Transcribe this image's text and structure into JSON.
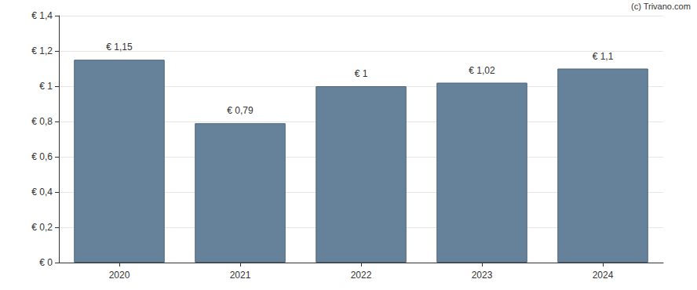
{
  "chart_data": {
    "type": "bar",
    "annotation": "(c) Trivano.com",
    "categories": [
      "2020",
      "2021",
      "2022",
      "2023",
      "2024"
    ],
    "values": [
      1.15,
      0.79,
      1,
      1.02,
      1.1
    ],
    "value_labels": [
      "€ 1,15",
      "€ 0,79",
      "€ 1",
      "€ 1,02",
      "€ 1,1"
    ],
    "data_labels": true,
    "color": "#66829a",
    "ylim": [
      0,
      1.4
    ],
    "yticks": [
      {
        "value": 0,
        "label": "€ 0"
      },
      {
        "value": 0.2,
        "label": "€ 0,2"
      },
      {
        "value": 0.4,
        "label": "€ 0,4"
      },
      {
        "value": 0.6,
        "label": "€ 0,6"
      },
      {
        "value": 0.8,
        "label": "€ 0,8"
      },
      {
        "value": 1,
        "label": "€ 1"
      },
      {
        "value": 1.2,
        "label": "€ 1,2"
      },
      {
        "value": 1.4,
        "label": "€ 1,4"
      }
    ],
    "grid": true
  }
}
